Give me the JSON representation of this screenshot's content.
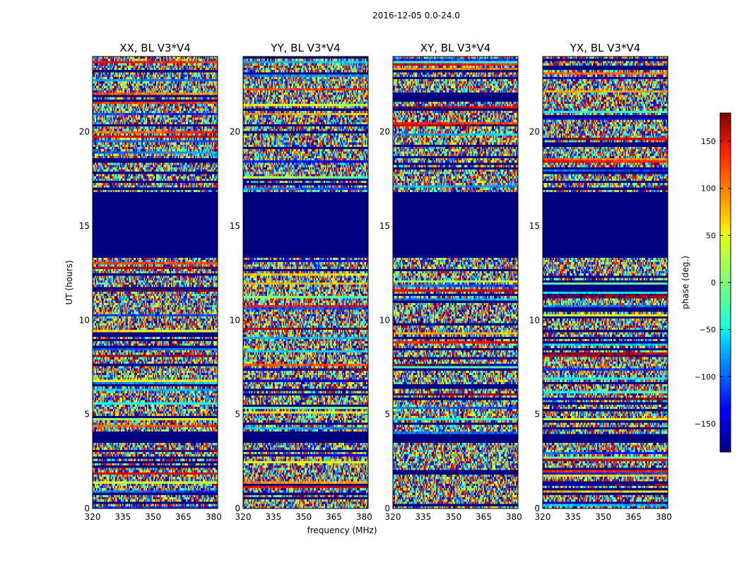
{
  "chart_data": {
    "type": "heatmap",
    "suptitle": "2016-12-05 0.0-24.0",
    "xlabel": "frequency (MHz)",
    "ylabel": "UT (hours)",
    "xlim": [
      320,
      382
    ],
    "ylim": [
      0,
      24
    ],
    "xticks": [
      "320",
      "335",
      "350",
      "365",
      "380"
    ],
    "yticks": [
      "0",
      "5",
      "10",
      "15",
      "20"
    ],
    "colorbar": {
      "label": "phase (deg.)",
      "range": [
        -180,
        180
      ],
      "ticks": [
        "150",
        "100",
        "50",
        "0",
        "−50",
        "−100",
        "−150"
      ],
      "colormap": "jet"
    },
    "panels": [
      {
        "title": "XX, BL V3*V4",
        "flag_periods_hours": [
          [
            13.3,
            16.8
          ],
          [
            3.5,
            3.9
          ]
        ]
      },
      {
        "title": "YY, BL V3*V4",
        "flag_periods_hours": [
          [
            13.3,
            16.8
          ],
          [
            3.5,
            3.9
          ]
        ]
      },
      {
        "title": "XY, BL V3*V4",
        "flag_periods_hours": [
          [
            13.3,
            16.8
          ],
          [
            3.5,
            3.9
          ]
        ]
      },
      {
        "title": "YX, BL V3*V4",
        "flag_periods_hours": [
          [
            13.3,
            16.8
          ],
          [
            3.5,
            3.9
          ]
        ]
      }
    ]
  }
}
